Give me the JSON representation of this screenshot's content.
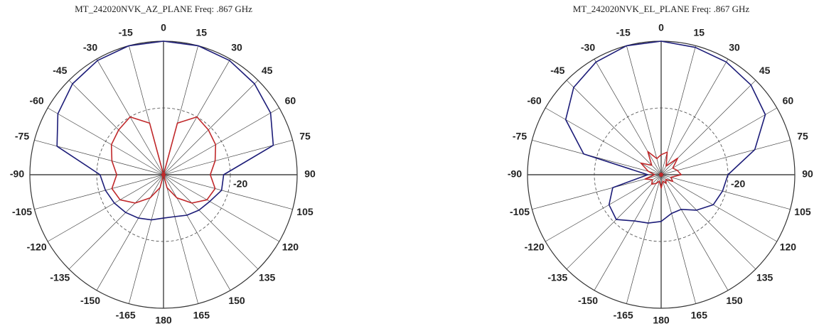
{
  "chart_data": [
    {
      "type": "polar",
      "title": "MT_242020NVK_AZ_PLANE  Freq:  .867 GHz",
      "theta": [
        0,
        15,
        30,
        45,
        60,
        75,
        90,
        105,
        120,
        135,
        150,
        165,
        180,
        -165,
        -150,
        -135,
        -120,
        -105,
        -90,
        -75,
        -60,
        -45,
        -30,
        -15
      ],
      "thetaticks": [
        0,
        15,
        30,
        45,
        60,
        75,
        90,
        105,
        120,
        135,
        150,
        165,
        180,
        -165,
        -150,
        -135,
        -120,
        -105,
        -90,
        -75,
        -60,
        -45,
        -30,
        -15
      ],
      "rlim": [
        -40,
        0
      ],
      "rticks": [
        -20
      ],
      "series": [
        {
          "color": "#1c1c78",
          "values": [
            0,
            0,
            -0.5,
            -1.5,
            -3,
            -6,
            -22,
            -22,
            -24,
            -25,
            -26,
            -27,
            -27,
            -26,
            -25,
            -24,
            -23,
            -22,
            -21,
            -7,
            -3.5,
            -1.5,
            -0.5,
            0
          ]
        },
        {
          "color": "#c0282a",
          "values": [
            -40,
            -24,
            -20,
            -21,
            -22,
            -24,
            -26,
            -24,
            -25,
            -28,
            -32,
            -36,
            -40,
            -36,
            -32,
            -28,
            -25,
            -24,
            -26,
            -24,
            -22,
            -21,
            -20,
            -24
          ]
        }
      ]
    },
    {
      "type": "polar",
      "title": "MT_242020NVK_EL_PLANE  Freq:  .867 GHz",
      "theta": [
        0,
        15,
        30,
        45,
        60,
        75,
        90,
        105,
        120,
        135,
        150,
        165,
        180,
        -165,
        -150,
        -135,
        -120,
        -105,
        -90,
        -75,
        -60,
        -45,
        -30,
        -15
      ],
      "thetaticks": [
        0,
        15,
        30,
        45,
        60,
        75,
        90,
        105,
        120,
        135,
        150,
        165,
        180,
        -165,
        -150,
        -135,
        -120,
        -105,
        -90,
        -75,
        -60,
        -45,
        -30,
        -15
      ],
      "rlim": [
        -40,
        0
      ],
      "rticks": [
        -20
      ],
      "series": [
        {
          "color": "#1c1c78",
          "values": [
            0,
            -0.5,
            -1,
            -2,
            -4,
            -11,
            -20,
            -21,
            -22,
            -25,
            -28,
            -28,
            -26,
            -25,
            -24,
            -21,
            -22,
            -25,
            -36,
            -16,
            -7,
            -3,
            -1,
            0
          ]
        },
        {
          "color": "#c0282a",
          "values": [
            -34,
            -33,
            -37,
            -33,
            -36,
            -35,
            -34,
            -37,
            -36,
            -38,
            -37,
            -38,
            -36,
            -38,
            -37,
            -36,
            -37,
            -35,
            -38,
            -36,
            -33,
            -36,
            -32,
            -35
          ]
        }
      ]
    }
  ]
}
